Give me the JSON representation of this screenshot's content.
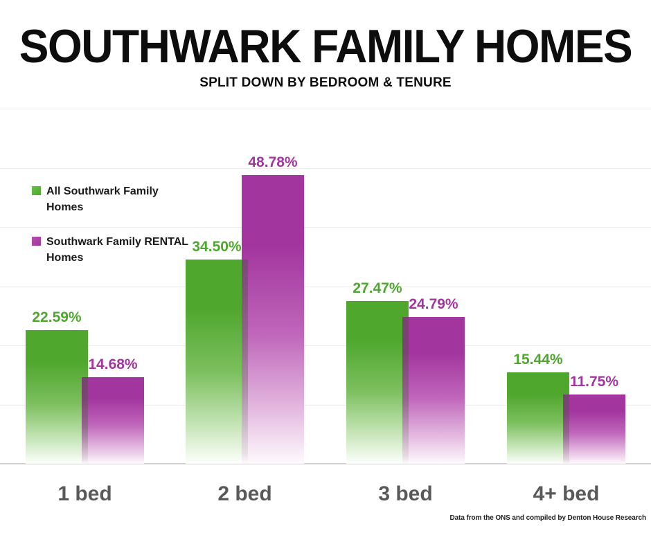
{
  "chart_data": {
    "type": "bar",
    "title": "SOUTHWARK FAMILY HOMES",
    "subtitle": "SPLIT DOWN BY BEDROOM & TENURE",
    "categories": [
      "1 bed",
      "2 bed",
      "3 bed",
      "4+ bed"
    ],
    "series": [
      {
        "name": "All Southwark Family Homes",
        "key": "all-southwark-family-homes",
        "color": "#4fa72e",
        "values": [
          22.59,
          34.5,
          27.47,
          15.44
        ]
      },
      {
        "name": "Southwark Family RENTAL Homes",
        "key": "southwark-family-rental-homes",
        "color": "#a2359e",
        "values": [
          14.68,
          48.78,
          24.79,
          11.75
        ]
      }
    ],
    "ylim": [
      0,
      60
    ],
    "grid_step": 10,
    "grid": "horizontal light-gray lines every 10%, no y-axis tick labels",
    "legend_position": "left, overlaying plot area",
    "value_label_format": "percent with 2 decimal places, colored per series, above each bar",
    "bar_style": "vertical gradient fading from series color at top to white at bottom, rental bar slightly overlaps left neighbour",
    "footnote": "Data from the ONS and compiled by Denton House Research"
  },
  "colors": {
    "series_all": "#4fa72e",
    "series_rental": "#a2359e",
    "category_label": "#595959",
    "gridline": "#ececec",
    "baseline": "#d2d2d2",
    "title": "#0d0d0d",
    "background": "#ffffff"
  }
}
